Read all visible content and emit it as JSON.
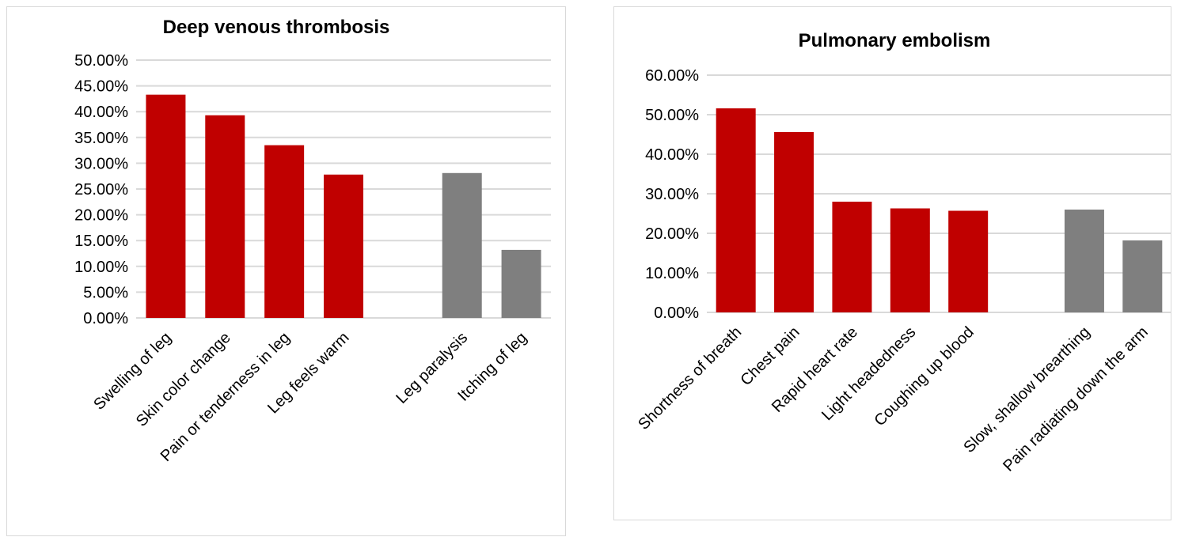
{
  "chart_data": [
    {
      "type": "bar",
      "title": "Deep venous thrombosis",
      "xlabel": "",
      "ylabel": "",
      "ylim": [
        0,
        0.5
      ],
      "yticks": [
        "0.00%",
        "5.00%",
        "10.00%",
        "15.00%",
        "20.00%",
        "25.00%",
        "30.00%",
        "35.00%",
        "40.00%",
        "45.00%",
        "50.00%"
      ],
      "grid": true,
      "legend": "none",
      "categories": [
        "Swelling of leg",
        "Skin color change",
        "Pain or tenderness in leg",
        "Leg feels warm",
        "",
        "Leg paralysis",
        "Itching of leg"
      ],
      "values": [
        0.433,
        0.393,
        0.335,
        0.278,
        null,
        0.281,
        0.132
      ],
      "colors": [
        "#c00000",
        "#c00000",
        "#c00000",
        "#c00000",
        "#c00000",
        "#7f7f7f",
        "#7f7f7f"
      ]
    },
    {
      "type": "bar",
      "title": "Pulmonary embolism",
      "xlabel": "",
      "ylabel": "",
      "ylim": [
        0,
        0.6
      ],
      "yticks": [
        "0.00%",
        "10.00%",
        "20.00%",
        "30.00%",
        "40.00%",
        "50.00%",
        "60.00%"
      ],
      "grid": true,
      "legend": "none",
      "categories": [
        "Shortness of breath",
        "Chest pain",
        "Rapid heart rate",
        "Light headedness",
        "Coughing up blood",
        "",
        "Slow, shallow brearthing",
        "Pain radiating down the arm"
      ],
      "values": [
        0.516,
        0.456,
        0.28,
        0.263,
        0.257,
        null,
        0.26,
        0.182
      ],
      "colors": [
        "#c00000",
        "#c00000",
        "#c00000",
        "#c00000",
        "#c00000",
        "#c00000",
        "#7f7f7f",
        "#7f7f7f"
      ]
    }
  ]
}
